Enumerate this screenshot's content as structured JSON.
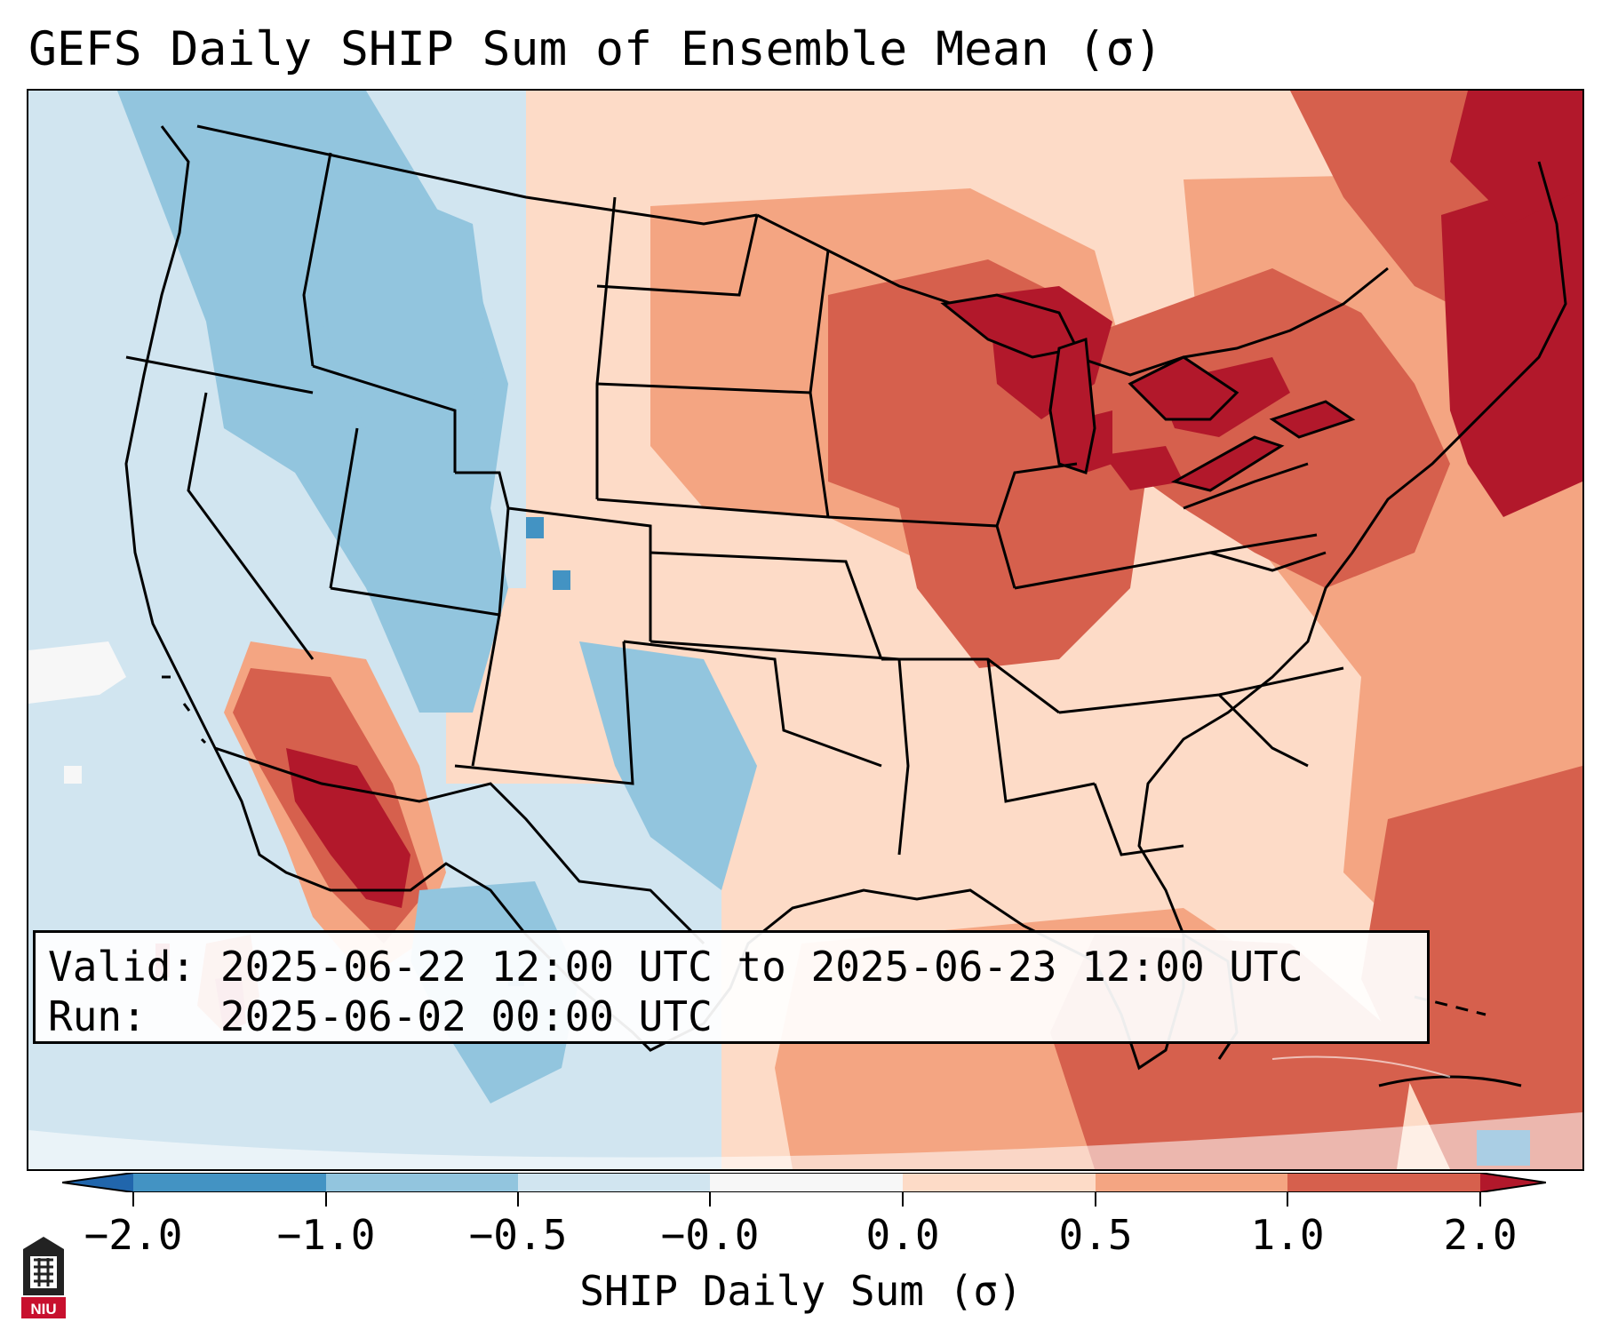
{
  "title": "GEFS Daily SHIP Sum of Ensemble Mean (σ)",
  "info": {
    "valid_label": "Valid:",
    "valid_value": "2025-06-22 12:00 UTC to 2025-06-23 12:00 UTC",
    "run_label": "Run:",
    "run_value": "2025-06-02 00:00 UTC"
  },
  "colorbar": {
    "label": "SHIP Daily Sum (σ)",
    "ticks": [
      "−2.0",
      "−1.0",
      "−0.5",
      "−0.0",
      "0.0",
      "0.5",
      "1.0",
      "2.0"
    ],
    "colors": [
      "#4393c3",
      "#92c5de",
      "#d1e5f0",
      "#f7f7f7",
      "#fddbc7",
      "#f4a582",
      "#d6604d",
      "#b2182b"
    ]
  },
  "logo": {
    "text": "NIU",
    "color": "#c8102e"
  }
}
